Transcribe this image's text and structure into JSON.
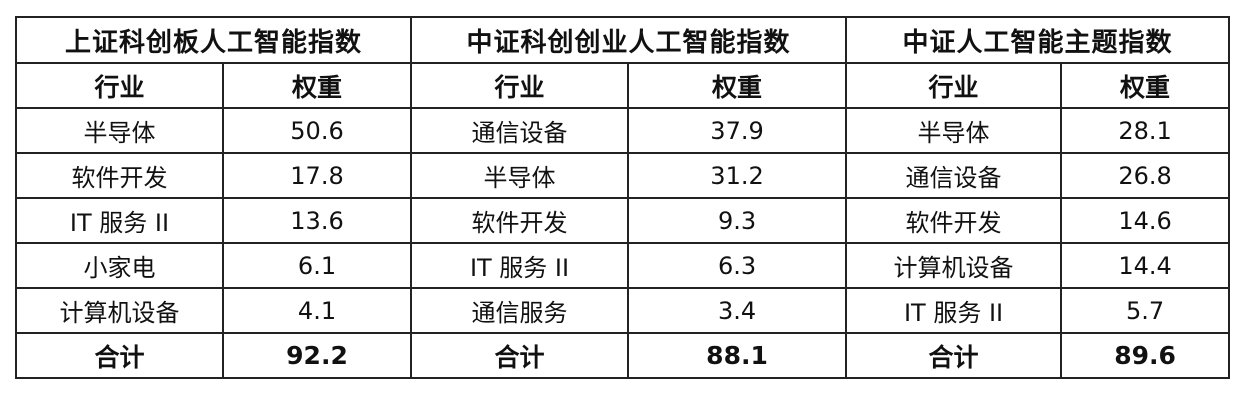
{
  "groups": [
    {
      "title": "上证科创板人工智能指数",
      "col_industry": "行业",
      "col_weight": "权重",
      "rows": [
        [
          "半导体",
          "50.6"
        ],
        [
          "软件开发",
          "17.8"
        ],
        [
          "IT 服务 II",
          "13.6"
        ],
        [
          "小家电",
          "6.1"
        ],
        [
          "计算机设备",
          "4.1"
        ]
      ],
      "total_label": "合计",
      "total": "92.2"
    },
    {
      "title": "中证科创创业人工智能指数",
      "col_industry": "行业",
      "col_weight": "权重",
      "rows": [
        [
          "通信设备",
          "37.9"
        ],
        [
          "半导体",
          "31.2"
        ],
        [
          "软件开发",
          "9.3"
        ],
        [
          "IT 服务 II",
          "6.3"
        ],
        [
          "通信服务",
          "3.4"
        ]
      ],
      "total_label": "合计",
      "total": "88.1"
    },
    {
      "title": "中证人工智能主题指数",
      "col_industry": "行业",
      "col_weight": "权重",
      "rows": [
        [
          "半导体",
          "28.1"
        ],
        [
          "通信设备",
          "26.8"
        ],
        [
          "软件开发",
          "14.6"
        ],
        [
          "计算机设备",
          "14.4"
        ],
        [
          "IT 服务 II",
          "5.7"
        ]
      ],
      "total_label": "合计",
      "total": "89.6"
    }
  ]
}
